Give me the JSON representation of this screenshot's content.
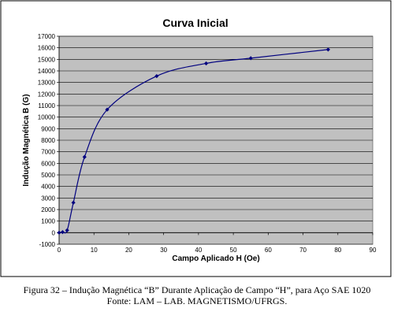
{
  "chart_data": {
    "type": "line",
    "title": "Curva Inicial",
    "xlabel": "Campo Aplicado H (Oe)",
    "ylabel": "Indução Magnética B (G)",
    "xlim": [
      0,
      90
    ],
    "ylim": [
      -1000,
      17000
    ],
    "x_ticks": [
      0,
      10,
      20,
      30,
      40,
      50,
      60,
      70,
      80,
      90
    ],
    "y_ticks": [
      -1000,
      0,
      1000,
      2000,
      3000,
      4000,
      5000,
      6000,
      7000,
      8000,
      9000,
      10000,
      11000,
      12000,
      13000,
      14000,
      15000,
      16000,
      17000
    ],
    "grid": "horizontal",
    "plot_background": "#c0c0c0",
    "line_color": "#00007f",
    "series": [
      {
        "points": [
          {
            "x": 0,
            "y": 0
          },
          {
            "x": 1,
            "y": 50
          },
          {
            "x": 2.3,
            "y": 200
          },
          {
            "x": 4.1,
            "y": 2600
          },
          {
            "x": 7.3,
            "y": 6550
          },
          {
            "x": 13.8,
            "y": 10650
          },
          {
            "x": 28.0,
            "y": 13550
          },
          {
            "x": 42.2,
            "y": 14650
          },
          {
            "x": 55.0,
            "y": 15100
          },
          {
            "x": 77.2,
            "y": 15850
          }
        ]
      }
    ]
  },
  "caption": {
    "line1": "Figura 32 – Indução Magnética “B” Durante Aplicação de Campo “H”, para  Aço SAE 1020",
    "line2": "Fonte: LAM – LAB. MAGNETISMO/UFRGS."
  }
}
